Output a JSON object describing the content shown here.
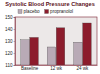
{
  "chart_data": {
    "type": "bar",
    "title": "Systolic Blood Pressure Changes",
    "categories": [
      "Baseline",
      "12 wk",
      "24 wk"
    ],
    "series": [
      {
        "name": "placebo",
        "color": "#b9aab6",
        "values": [
          131,
          125,
          129
        ]
      },
      {
        "name": "propranolol",
        "color": "#8c1c2c",
        "values": [
          133,
          141,
          145
        ]
      }
    ],
    "ylim": [
      110,
      150
    ],
    "yticks": [
      110,
      120,
      130,
      140,
      150
    ],
    "grid": false,
    "legend": "top"
  }
}
